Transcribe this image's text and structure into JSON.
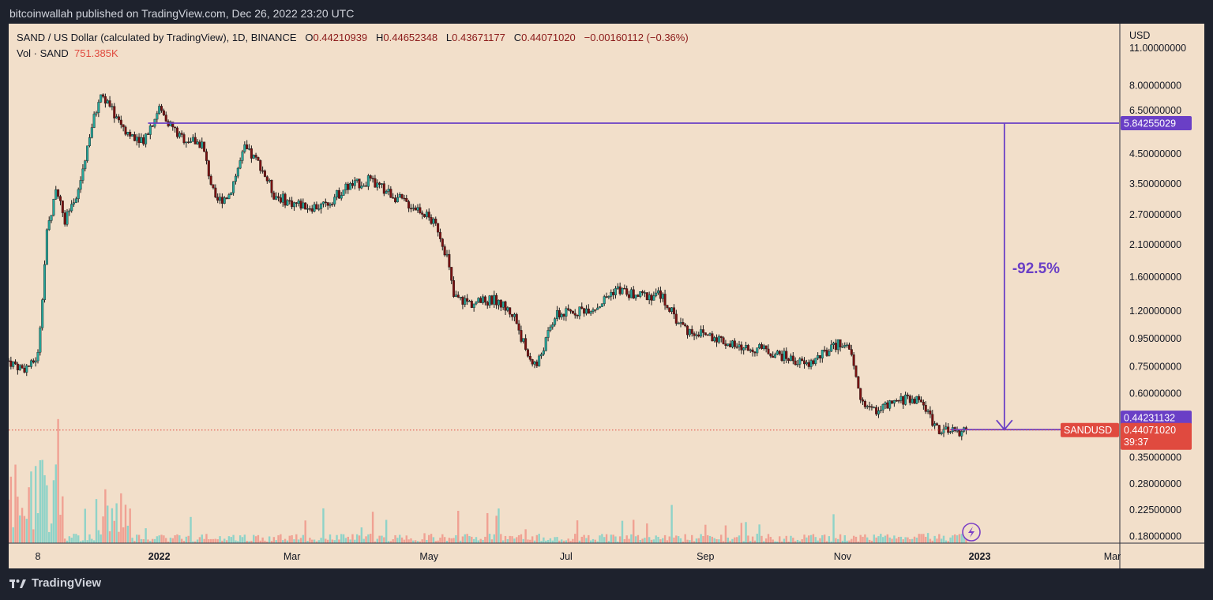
{
  "header": {
    "published_by": "bitcoinwallah published on TradingView.com, Dec 26, 2022 23:20 UTC"
  },
  "legend": {
    "symbol": "SAND / US Dollar (calculated by TradingView), 1D, BINANCE",
    "o_label": "O",
    "o": "0.44210939",
    "h_label": "H",
    "h": "0.44652348",
    "l_label": "L",
    "l": "0.43671177",
    "c_label": "C",
    "c": "0.44071020",
    "change": "−0.00160112 (−0.36%)",
    "vol_label": "Vol · SAND",
    "vol": "751.385K"
  },
  "footer": {
    "brand": "TradingView",
    "logo_icon": "tradingview-logo-icon"
  },
  "colors": {
    "background": "#f2dfca",
    "frame": "#1e222d",
    "up": "#26a69a",
    "down": "#7a1010",
    "annotation": "#6a3fc6",
    "last_price": "#e04a3f"
  },
  "chart_data": {
    "type": "candlestick",
    "title": "SAND / US Dollar (calculated by TradingView), 1D, BINANCE",
    "price_scale_label": "USD",
    "y_scale": "log",
    "ylim": [
      0.17,
      13.5
    ],
    "y_ticks": [
      "11.00000000",
      "8.00000000",
      "6.50000000",
      "4.50000000",
      "3.50000000",
      "2.70000000",
      "2.10000000",
      "1.60000000",
      "1.20000000",
      "0.95000000",
      "0.75000000",
      "0.60000000",
      "0.44231132",
      "0.35000000",
      "0.28000000",
      "0.22500000",
      "0.18000000"
    ],
    "x_ticks": [
      "8",
      "2022",
      "Mar",
      "May",
      "Jul",
      "Sep",
      "Nov",
      "2023",
      "Mar"
    ],
    "x_range": [
      "2021-10-26",
      "2023-03-04"
    ],
    "series": [
      {
        "x": [
          "2021-10-26",
          "2021-11-01",
          "2021-11-05",
          "2021-11-08",
          "2021-11-12",
          "2021-11-16",
          "2021-11-20",
          "2021-11-25",
          "2021-12-01",
          "2021-12-06",
          "2021-12-12",
          "2021-12-18",
          "2021-12-25",
          "2022-01-01",
          "2022-01-10",
          "2022-01-20",
          "2022-01-26",
          "2022-02-01",
          "2022-02-08",
          "2022-02-15",
          "2022-02-21",
          "2022-02-28",
          "2022-03-08",
          "2022-03-15",
          "2022-03-25",
          "2022-04-04",
          "2022-04-12",
          "2022-04-20",
          "2022-04-28",
          "2022-05-05",
          "2022-05-09",
          "2022-05-12",
          "2022-05-20",
          "2022-05-31",
          "2022-06-08",
          "2022-06-14",
          "2022-06-18",
          "2022-06-26",
          "2022-07-05",
          "2022-07-15",
          "2022-07-23",
          "2022-08-01",
          "2022-08-12",
          "2022-08-19",
          "2022-08-24",
          "2022-09-05",
          "2022-09-15",
          "2022-09-26",
          "2022-10-06",
          "2022-10-16",
          "2022-10-26",
          "2022-11-01",
          "2022-11-05",
          "2022-11-09",
          "2022-11-14",
          "2022-11-22",
          "2022-11-30",
          "2022-12-06",
          "2022-12-13",
          "2022-12-18",
          "2022-12-26"
        ],
        "y": [
          0.79,
          0.74,
          0.76,
          0.83,
          2.3,
          3.4,
          2.6,
          3.0,
          5.3,
          7.5,
          6.3,
          5.4,
          5.1,
          6.6,
          5.2,
          4.9,
          3.0,
          3.2,
          4.7,
          4.1,
          3.2,
          3.0,
          2.9,
          2.9,
          3.4,
          3.6,
          3.3,
          3.0,
          2.8,
          2.4,
          1.9,
          1.35,
          1.28,
          1.32,
          1.15,
          0.82,
          0.76,
          1.15,
          1.2,
          1.25,
          1.45,
          1.36,
          1.38,
          1.12,
          1.02,
          0.97,
          0.88,
          0.87,
          0.82,
          0.76,
          0.86,
          0.93,
          0.82,
          0.57,
          0.52,
          0.54,
          0.58,
          0.56,
          0.45,
          0.43,
          0.4407
        ]
      }
    ],
    "volume_label": "Vol · SAND",
    "last_volume": "751.385K",
    "last_price": "0.44071020",
    "countdown": "39:37",
    "symbol_tag": "SANDUSD",
    "annotations": {
      "top_level": "5.84255029",
      "bottom_level": "0.44231132",
      "change": "-92.5%",
      "start_date": "2021-12-27",
      "end_date": "2023-01-12"
    }
  }
}
